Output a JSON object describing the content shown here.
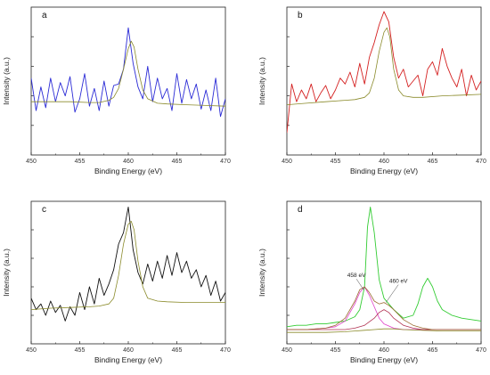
{
  "chart_data": [
    {
      "type": "line",
      "panel_label": "a",
      "xlabel": "Binding Energy (eV)",
      "ylabel": "Intensity (a.u.)",
      "xlim": [
        450,
        470
      ],
      "ylim": [
        0,
        100
      ],
      "xticks": [
        450,
        455,
        460,
        465,
        470
      ],
      "annotations": [],
      "series": [
        {
          "color": "#2a2ad6",
          "x": [
            450,
            450.5,
            451,
            451.5,
            452,
            452.5,
            453,
            453.5,
            454,
            454.5,
            455,
            455.5,
            456,
            456.5,
            457,
            457.5,
            458,
            458.5,
            459,
            459.5,
            460,
            460.5,
            461,
            461.5,
            462,
            462.5,
            463,
            463.5,
            464,
            464.5,
            465,
            465.5,
            466,
            466.5,
            467,
            467.5,
            468,
            468.5,
            469,
            469.5,
            470
          ],
          "y": [
            52,
            30,
            46,
            32,
            52,
            36,
            49,
            40,
            53,
            29,
            38,
            55,
            33,
            45,
            30,
            50,
            33,
            47,
            48,
            58,
            86,
            62,
            46,
            38,
            60,
            36,
            52,
            38,
            45,
            30,
            55,
            35,
            51,
            38,
            48,
            31,
            44,
            30,
            52,
            26,
            38
          ]
        },
        {
          "color": "#8a8a2a",
          "x": [
            450,
            452,
            454,
            456,
            457,
            458,
            458.5,
            459,
            459.5,
            460,
            460.3,
            460.6,
            461,
            461.5,
            462,
            463,
            464,
            466,
            468,
            470
          ],
          "y": [
            36,
            36,
            36,
            35.5,
            35.5,
            37,
            39,
            45,
            58,
            72,
            77,
            73,
            58,
            44,
            38,
            35,
            34.5,
            34,
            33.5,
            33
          ]
        }
      ]
    },
    {
      "type": "line",
      "panel_label": "b",
      "xlabel": "Binding Energy (eV)",
      "ylabel": "Intensity (a.u.)",
      "xlim": [
        450,
        470
      ],
      "ylim": [
        0,
        100
      ],
      "xticks": [
        450,
        455,
        460,
        465,
        470
      ],
      "annotations": [],
      "series": [
        {
          "color": "#d42020",
          "x": [
            450,
            450.5,
            451,
            451.5,
            452,
            452.5,
            453,
            453.5,
            454,
            454.5,
            455,
            455.5,
            456,
            456.5,
            457,
            457.5,
            458,
            458.5,
            459,
            459.5,
            460,
            460.5,
            461,
            461.5,
            462,
            462.5,
            463,
            463.5,
            464,
            464.5,
            465,
            465.5,
            466,
            466.5,
            467,
            467.5,
            468,
            468.5,
            469,
            469.5,
            470
          ],
          "y": [
            15,
            48,
            36,
            44,
            38,
            48,
            36,
            42,
            47,
            38,
            44,
            52,
            48,
            56,
            46,
            62,
            48,
            66,
            76,
            88,
            97,
            90,
            66,
            52,
            58,
            46,
            50,
            54,
            40,
            58,
            63,
            54,
            72,
            60,
            52,
            46,
            58,
            40,
            54,
            44,
            50
          ]
        },
        {
          "color": "#8a8a2a",
          "x": [
            450,
            452,
            454,
            456,
            457,
            458,
            458.5,
            459,
            459.5,
            460,
            460.3,
            460.6,
            461,
            461.5,
            462,
            463,
            464,
            466,
            468,
            470
          ],
          "y": [
            34,
            35,
            36,
            37,
            37.5,
            39,
            42,
            52,
            70,
            83,
            86,
            80,
            58,
            44,
            40,
            39,
            39,
            40,
            40.5,
            41
          ]
        }
      ]
    },
    {
      "type": "line",
      "panel_label": "c",
      "xlabel": "Binding Energy (eV)",
      "ylabel": "Intensity (a.u.)",
      "xlim": [
        450,
        470
      ],
      "ylim": [
        0,
        100
      ],
      "xticks": [
        450,
        455,
        460,
        465,
        470
      ],
      "annotations": [],
      "series": [
        {
          "color": "#111111",
          "x": [
            450,
            450.5,
            451,
            451.5,
            452,
            452.5,
            453,
            453.5,
            454,
            454.5,
            455,
            455.5,
            456,
            456.5,
            457,
            457.5,
            458,
            458.5,
            459,
            459.5,
            460,
            460.5,
            461,
            461.5,
            462,
            462.5,
            463,
            463.5,
            464,
            464.5,
            465,
            465.5,
            466,
            466.5,
            467,
            467.5,
            468,
            468.5,
            469,
            469.5,
            470
          ],
          "y": [
            32,
            24,
            28,
            20,
            30,
            22,
            27,
            16,
            26,
            20,
            36,
            24,
            40,
            28,
            46,
            34,
            42,
            52,
            70,
            78,
            96,
            66,
            50,
            42,
            56,
            44,
            58,
            46,
            62,
            48,
            64,
            50,
            58,
            46,
            52,
            40,
            48,
            34,
            44,
            30,
            36
          ]
        },
        {
          "color": "#8a8a2a",
          "x": [
            450,
            452,
            454,
            456,
            457,
            458,
            458.5,
            459,
            459.5,
            460,
            460.3,
            460.6,
            461,
            461.5,
            462,
            463,
            464,
            466,
            468,
            470
          ],
          "y": [
            24,
            25,
            25.5,
            26,
            26.5,
            28,
            32,
            48,
            70,
            84,
            86,
            80,
            58,
            40,
            32,
            30,
            29.5,
            29,
            29,
            29
          ]
        }
      ]
    },
    {
      "type": "line",
      "panel_label": "d",
      "xlabel": "Binding Energy (eV)",
      "ylabel": "Intensity (a.u.)",
      "xlim": [
        450,
        470
      ],
      "ylim": [
        0,
        100
      ],
      "xticks": [
        450,
        455,
        460,
        465,
        470
      ],
      "annotations": [
        {
          "text": "458 eV",
          "x": 457.9,
          "y": 38
        },
        {
          "text": "460 eV",
          "x": 460.2,
          "y": 29
        }
      ],
      "series": [
        {
          "color": "#33cc33",
          "x": [
            450,
            451,
            452,
            453,
            454,
            455,
            456,
            457,
            457.5,
            458,
            458.3,
            458.6,
            459,
            459.5,
            460,
            460.5,
            461,
            462,
            463,
            463.5,
            464,
            464.5,
            465,
            465.5,
            466,
            467,
            468,
            469,
            470
          ],
          "y": [
            12,
            13,
            13,
            14,
            14,
            15,
            16,
            19,
            24,
            40,
            82,
            96,
            78,
            45,
            32,
            28,
            24,
            18,
            20,
            28,
            40,
            46,
            40,
            30,
            24,
            20,
            18,
            17,
            16
          ]
        },
        {
          "color": "#e040c8",
          "x": [
            450,
            452,
            454,
            455,
            456,
            457,
            457.5,
            458,
            458.5,
            459,
            459.5,
            460,
            461,
            462,
            464,
            466,
            470
          ],
          "y": [
            10,
            10,
            11,
            12,
            16,
            28,
            36,
            40,
            34,
            26,
            18,
            14,
            11,
            10,
            10,
            10,
            10
          ]
        },
        {
          "color": "#b03050",
          "x": [
            450,
            452,
            454,
            456,
            457,
            458,
            459,
            459.5,
            460,
            460.5,
            461,
            462,
            463,
            464,
            466,
            470
          ],
          "y": [
            10,
            10,
            10,
            10,
            11,
            13,
            18,
            22,
            24,
            22,
            18,
            13,
            11,
            10,
            10,
            10
          ]
        },
        {
          "color": "#9a6a30",
          "x": [
            450,
            452,
            454,
            455,
            456,
            457,
            457.5,
            458,
            458.5,
            459,
            459.5,
            460,
            460.5,
            461,
            462,
            463,
            464,
            465,
            466,
            470
          ],
          "y": [
            10,
            10,
            11,
            13,
            18,
            30,
            38,
            40,
            36,
            30,
            28,
            29,
            27,
            24,
            17,
            13,
            11,
            10,
            10,
            10
          ]
        },
        {
          "color": "#8a8a2a",
          "x": [
            450,
            452,
            454,
            456,
            457,
            458,
            459,
            460,
            461,
            462,
            464,
            466,
            468,
            470
          ],
          "y": [
            8,
            8,
            8,
            8.5,
            9,
            9.5,
            10,
            10.5,
            10.5,
            10,
            9.5,
            9,
            9,
            9
          ]
        }
      ]
    }
  ]
}
